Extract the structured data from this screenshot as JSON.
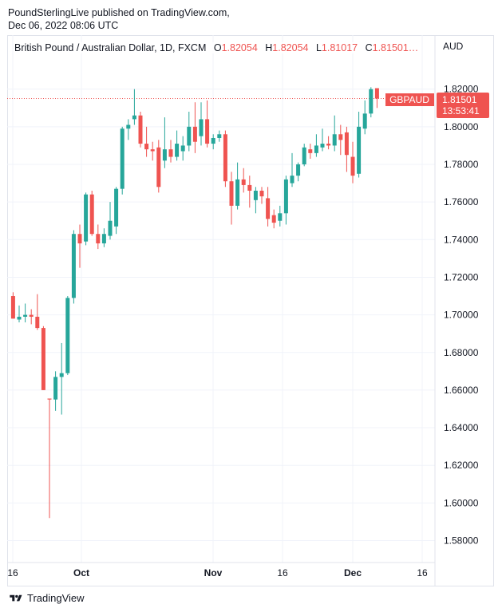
{
  "header": {
    "line1": "PoundSterlingLive published on TradingView.com,",
    "line2": "Dec 06, 2022 08:06 UTC"
  },
  "legend": {
    "symbol": "British Pound / Australian Dollar, 1D, FXCM",
    "o_label": "O",
    "o_value": "1.82054",
    "h_label": "H",
    "h_value": "1.82054",
    "l_label": "L",
    "l_value": "1.81017",
    "c_label": "C",
    "c_value": "1.81501…"
  },
  "currency_label": "AUD",
  "price_tag": {
    "ticker": "GBPAUD",
    "price": "1.81501",
    "countdown": "13:53:41"
  },
  "footer": {
    "brand": "TradingView"
  },
  "colors": {
    "up": "#26a69a",
    "down": "#ef5350",
    "grid": "#f0f3fa",
    "text": "#131722"
  },
  "chart_data": {
    "type": "candlestick",
    "y_axis": {
      "ticks": [
        "1.82000",
        "1.80000",
        "1.78000",
        "1.76000",
        "1.74000",
        "1.72000",
        "1.70000",
        "1.68000",
        "1.66000",
        "1.64000",
        "1.62000",
        "1.60000",
        "1.58000"
      ],
      "range": [
        1.574,
        1.826
      ]
    },
    "x_axis": {
      "tick_labels": [
        {
          "label": "16",
          "bold": false
        },
        {
          "label": "Oct",
          "bold": true
        },
        {
          "label": "Nov",
          "bold": true
        },
        {
          "label": "16",
          "bold": false
        },
        {
          "label": "Dec",
          "bold": true
        },
        {
          "label": "16",
          "bold": false
        }
      ]
    },
    "last_price": 1.81501,
    "candles": [
      {
        "o": 1.71,
        "h": 1.712,
        "l": 1.698,
        "c": 1.698
      },
      {
        "o": 1.6975,
        "h": 1.705,
        "l": 1.696,
        "c": 1.699
      },
      {
        "o": 1.699,
        "h": 1.706,
        "l": 1.696,
        "c": 1.7
      },
      {
        "o": 1.7,
        "h": 1.703,
        "l": 1.695,
        "c": 1.699
      },
      {
        "o": 1.699,
        "h": 1.711,
        "l": 1.692,
        "c": 1.693
      },
      {
        "o": 1.693,
        "h": 1.694,
        "l": 1.66,
        "c": 1.66
      },
      {
        "o": 1.6555,
        "h": 1.6555,
        "l": 1.592,
        "c": 1.655
      },
      {
        "o": 1.655,
        "h": 1.67,
        "l": 1.649,
        "c": 1.667
      },
      {
        "o": 1.667,
        "h": 1.685,
        "l": 1.647,
        "c": 1.669
      },
      {
        "o": 1.669,
        "h": 1.71,
        "l": 1.668,
        "c": 1.709
      },
      {
        "o": 1.709,
        "h": 1.745,
        "l": 1.706,
        "c": 1.743
      },
      {
        "o": 1.743,
        "h": 1.748,
        "l": 1.725,
        "c": 1.738
      },
      {
        "o": 1.739,
        "h": 1.765,
        "l": 1.737,
        "c": 1.764
      },
      {
        "o": 1.764,
        "h": 1.766,
        "l": 1.742,
        "c": 1.743
      },
      {
        "o": 1.743,
        "h": 1.748,
        "l": 1.735,
        "c": 1.738
      },
      {
        "o": 1.738,
        "h": 1.746,
        "l": 1.736,
        "c": 1.743
      },
      {
        "o": 1.742,
        "h": 1.76,
        "l": 1.74,
        "c": 1.75
      },
      {
        "o": 1.747,
        "h": 1.768,
        "l": 1.743,
        "c": 1.767
      },
      {
        "o": 1.767,
        "h": 1.8,
        "l": 1.764,
        "c": 1.799
      },
      {
        "o": 1.799,
        "h": 1.804,
        "l": 1.793,
        "c": 1.801
      },
      {
        "o": 1.804,
        "h": 1.82,
        "l": 1.801,
        "c": 1.806
      },
      {
        "o": 1.806,
        "h": 1.808,
        "l": 1.789,
        "c": 1.791
      },
      {
        "o": 1.791,
        "h": 1.8,
        "l": 1.784,
        "c": 1.788
      },
      {
        "o": 1.788,
        "h": 1.792,
        "l": 1.782,
        "c": 1.787
      },
      {
        "o": 1.789,
        "h": 1.793,
        "l": 1.765,
        "c": 1.768
      },
      {
        "o": 1.782,
        "h": 1.805,
        "l": 1.778,
        "c": 1.788
      },
      {
        "o": 1.788,
        "h": 1.793,
        "l": 1.781,
        "c": 1.784
      },
      {
        "o": 1.784,
        "h": 1.798,
        "l": 1.782,
        "c": 1.791
      },
      {
        "o": 1.787,
        "h": 1.795,
        "l": 1.782,
        "c": 1.79
      },
      {
        "o": 1.79,
        "h": 1.808,
        "l": 1.787,
        "c": 1.8
      },
      {
        "o": 1.8,
        "h": 1.813,
        "l": 1.786,
        "c": 1.792
      },
      {
        "o": 1.795,
        "h": 1.813,
        "l": 1.79,
        "c": 1.804
      },
      {
        "o": 1.804,
        "h": 1.814,
        "l": 1.789,
        "c": 1.791
      },
      {
        "o": 1.791,
        "h": 1.796,
        "l": 1.788,
        "c": 1.794
      },
      {
        "o": 1.794,
        "h": 1.798,
        "l": 1.792,
        "c": 1.796
      },
      {
        "o": 1.796,
        "h": 1.798,
        "l": 1.768,
        "c": 1.771
      },
      {
        "o": 1.771,
        "h": 1.776,
        "l": 1.748,
        "c": 1.758
      },
      {
        "o": 1.758,
        "h": 1.781,
        "l": 1.756,
        "c": 1.772
      },
      {
        "o": 1.772,
        "h": 1.778,
        "l": 1.765,
        "c": 1.769
      },
      {
        "o": 1.769,
        "h": 1.774,
        "l": 1.757,
        "c": 1.766
      },
      {
        "o": 1.761,
        "h": 1.768,
        "l": 1.754,
        "c": 1.766
      },
      {
        "o": 1.766,
        "h": 1.768,
        "l": 1.759,
        "c": 1.763
      },
      {
        "o": 1.762,
        "h": 1.768,
        "l": 1.747,
        "c": 1.751
      },
      {
        "o": 1.753,
        "h": 1.756,
        "l": 1.746,
        "c": 1.749
      },
      {
        "o": 1.75,
        "h": 1.758,
        "l": 1.747,
        "c": 1.754
      },
      {
        "o": 1.754,
        "h": 1.774,
        "l": 1.748,
        "c": 1.772
      },
      {
        "o": 1.77,
        "h": 1.786,
        "l": 1.768,
        "c": 1.774
      },
      {
        "o": 1.774,
        "h": 1.781,
        "l": 1.771,
        "c": 1.78
      },
      {
        "o": 1.78,
        "h": 1.791,
        "l": 1.779,
        "c": 1.789
      },
      {
        "o": 1.788,
        "h": 1.791,
        "l": 1.783,
        "c": 1.786
      },
      {
        "o": 1.786,
        "h": 1.796,
        "l": 1.784,
        "c": 1.79
      },
      {
        "o": 1.789,
        "h": 1.799,
        "l": 1.787,
        "c": 1.791
      },
      {
        "o": 1.791,
        "h": 1.795,
        "l": 1.788,
        "c": 1.79
      },
      {
        "o": 1.79,
        "h": 1.806,
        "l": 1.787,
        "c": 1.796
      },
      {
        "o": 1.796,
        "h": 1.801,
        "l": 1.785,
        "c": 1.793
      },
      {
        "o": 1.797,
        "h": 1.8,
        "l": 1.776,
        "c": 1.785
      },
      {
        "o": 1.784,
        "h": 1.792,
        "l": 1.77,
        "c": 1.774
      },
      {
        "o": 1.775,
        "h": 1.808,
        "l": 1.773,
        "c": 1.8
      },
      {
        "o": 1.799,
        "h": 1.814,
        "l": 1.796,
        "c": 1.807
      },
      {
        "o": 1.807,
        "h": 1.821,
        "l": 1.805,
        "c": 1.82
      },
      {
        "o": 1.8205,
        "h": 1.8205,
        "l": 1.81,
        "c": 1.815
      }
    ]
  }
}
